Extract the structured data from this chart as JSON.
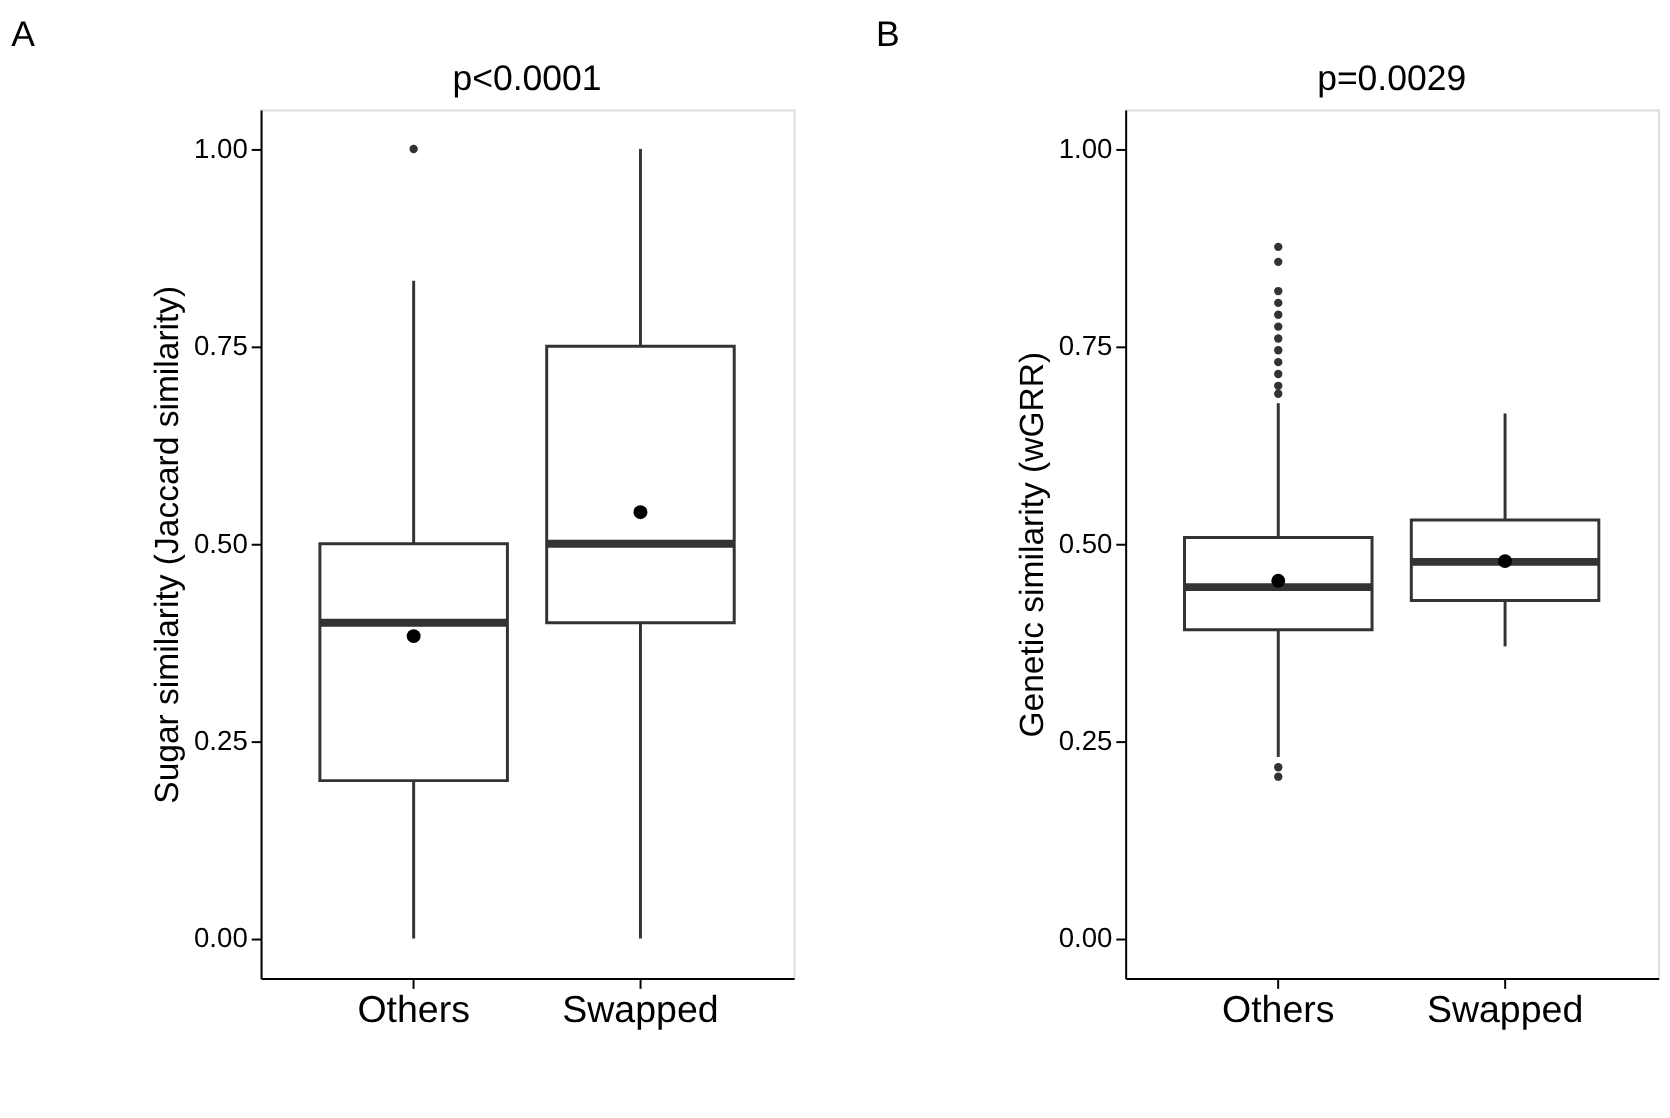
{
  "chart_data": [
    {
      "type": "box",
      "title": "A",
      "ylabel": "Sugar similarity (Jaccard similarity)",
      "categories": [
        "Others",
        "Swapped"
      ],
      "annotations": [
        "p<0.0001"
      ],
      "boxes": [
        {
          "low": 0.0,
          "q1": 0.2,
          "median": 0.4,
          "q3": 0.5,
          "high": 0.833,
          "mean": 0.383,
          "outliers": [
            1.0
          ]
        },
        {
          "low": 0.0,
          "q1": 0.4,
          "median": 0.5,
          "q3": 0.75,
          "high": 1.0,
          "mean": 0.54
        }
      ],
      "ylim": [
        -0.05,
        1.05
      ],
      "yticks": [
        {
          "value": 0,
          "label": "0.00"
        },
        {
          "value": 0.25,
          "label": "0.25"
        },
        {
          "value": 0.5,
          "label": "0.50"
        },
        {
          "value": 0.75,
          "label": "0.75"
        },
        {
          "value": 1,
          "label": "1.00"
        }
      ],
      "grid": false
    },
    {
      "type": "box",
      "title": "B",
      "ylabel": "Genetic similarity (wGRR)",
      "categories": [
        "Others",
        "Swapped"
      ],
      "annotations": [
        "p=0.0029"
      ],
      "boxes": [
        {
          "low": 0.23,
          "q1": 0.391,
          "median": 0.445,
          "q3": 0.508,
          "high": 0.678,
          "mean": 0.453,
          "outliers": [
            0.876,
            0.857,
            0.82,
            0.805,
            0.79,
            0.775,
            0.76,
            0.745,
            0.73,
            0.715,
            0.7,
            0.69,
            0.217,
            0.205
          ]
        },
        {
          "low": 0.37,
          "q1": 0.428,
          "median": 0.477,
          "q3": 0.53,
          "high": 0.665,
          "mean": 0.478
        }
      ],
      "ylim": [
        -0.05,
        1.05
      ],
      "yticks": [
        {
          "value": 0,
          "label": "0.00"
        },
        {
          "value": 0.25,
          "label": "0.25"
        },
        {
          "value": 0.5,
          "label": "0.50"
        },
        {
          "value": 0.75,
          "label": "0.75"
        },
        {
          "value": 1,
          "label": "1.00"
        }
      ],
      "grid": false
    }
  ]
}
